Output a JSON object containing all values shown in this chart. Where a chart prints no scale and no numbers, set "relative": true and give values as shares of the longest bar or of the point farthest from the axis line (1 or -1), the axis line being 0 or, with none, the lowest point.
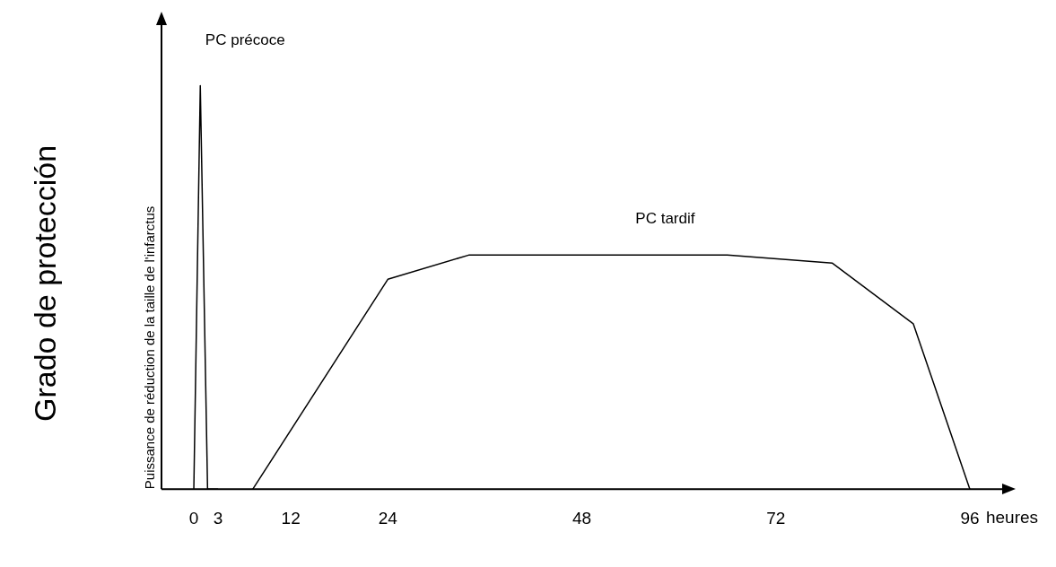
{
  "chart_data": {
    "type": "line",
    "relative": true,
    "xlabel": "heures",
    "ylabel": "Puissance de réduction de la taille de l'infarctus",
    "annotations": [
      "Grado de protección",
      "PC précoce",
      "PC tardif"
    ],
    "xlim": [
      -4,
      100
    ],
    "xticks": [
      0,
      3,
      12,
      24,
      48,
      72,
      96
    ],
    "grid": false,
    "legend": false,
    "marker": "none",
    "line_style": "solid",
    "series": [
      {
        "color": "#000000",
        "x": [
          0,
          0.8,
          1.7,
          3
        ],
        "values": [
          0,
          1,
          0,
          0
        ]
      },
      {
        "color": "#000000",
        "x": [
          7.3,
          24,
          34,
          66,
          79,
          89,
          96
        ],
        "values": [
          0,
          0.52,
          0.58,
          0.58,
          0.56,
          0.41,
          0
        ]
      }
    ]
  }
}
